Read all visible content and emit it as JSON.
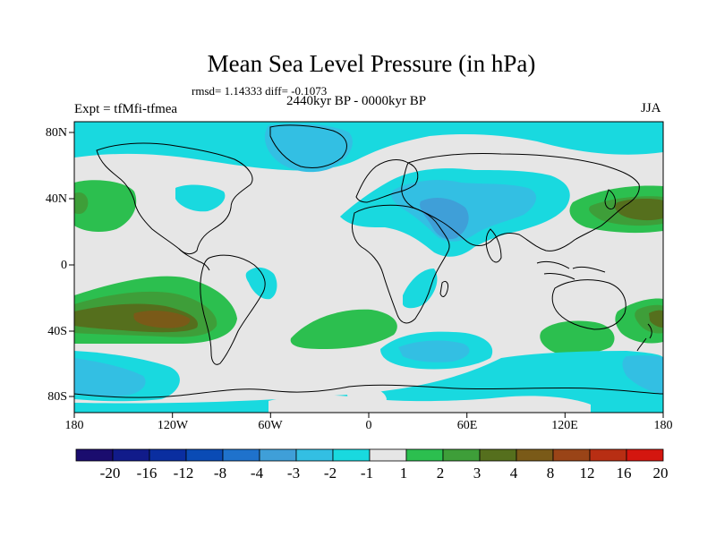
{
  "title": "Mean Sea Level Pressure (in hPa)",
  "stats": "rmsd= 1.14333 diff= -0.1073",
  "period": "2440kyr BP - 0000kyr BP",
  "experiment": "Expt = tfMfi-tfmea",
  "season": "JJA",
  "lat_labels": [
    "80N",
    "40N",
    "0",
    "40S",
    "80S"
  ],
  "lon_labels": [
    "180",
    "120W",
    "60W",
    "0",
    "60E",
    "120E",
    "180"
  ],
  "colorbar": {
    "labels": [
      "-20",
      "-16",
      "-12",
      "-8",
      "-4",
      "-3",
      "-2",
      "-1",
      "1",
      "2",
      "3",
      "4",
      "8",
      "12",
      "16",
      "20"
    ],
    "colors": [
      "#1a0c6e",
      "#111b8a",
      "#0a2ea0",
      "#0a4bb5",
      "#1f72cc",
      "#3f9fd8",
      "#33bfe3",
      "#19d9df",
      "#e6e6e6",
      "#2cbf4f",
      "#3e9e39",
      "#556f1d",
      "#7a5a18",
      "#9a4417",
      "#b82e13",
      "#d4160f"
    ]
  },
  "map_colors": {
    "ocean_neutral": "#e6e6e6",
    "neg_1": "#19d9df",
    "neg_2": "#33bfe3",
    "neg_3": "#3f9fd8",
    "pos_1": "#2cbf4f",
    "pos_2": "#3e9e39",
    "pos_3": "#556f1d",
    "pos_4": "#7a5a18",
    "coast": "#000000"
  }
}
